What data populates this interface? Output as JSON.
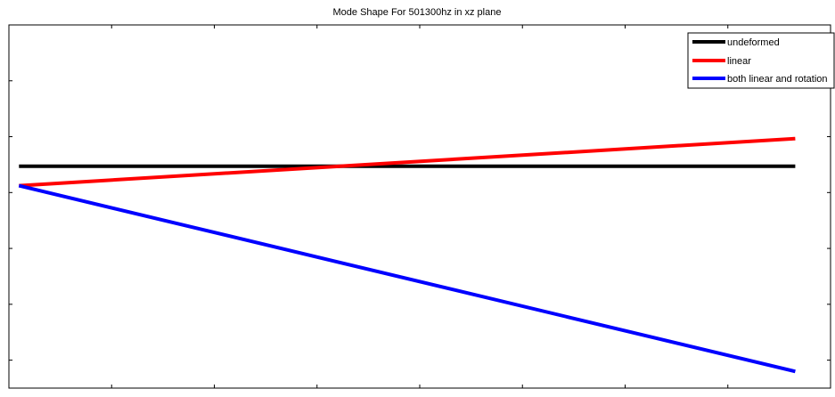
{
  "chart_data": {
    "type": "line",
    "title": "Mode Shape For 501300hz in xz plane",
    "xlabel": "",
    "ylabel": "",
    "xlim": [
      -0.1,
      8.05
    ],
    "ylim": [
      -4.0,
      2.55
    ],
    "grid": false,
    "legend_position": "top-right",
    "series": [
      {
        "name": "undeformed",
        "color": "#000000",
        "x": [
          0,
          7.7
        ],
        "y": [
          0,
          0
        ]
      },
      {
        "name": "linear",
        "color": "#ff0000",
        "x": [
          0,
          7.7
        ],
        "y": [
          -0.35,
          0.5
        ]
      },
      {
        "name": "both linear and rotation",
        "color": "#0000ff",
        "x": [
          0,
          7.7
        ],
        "y": [
          -0.35,
          -3.7
        ]
      }
    ]
  }
}
